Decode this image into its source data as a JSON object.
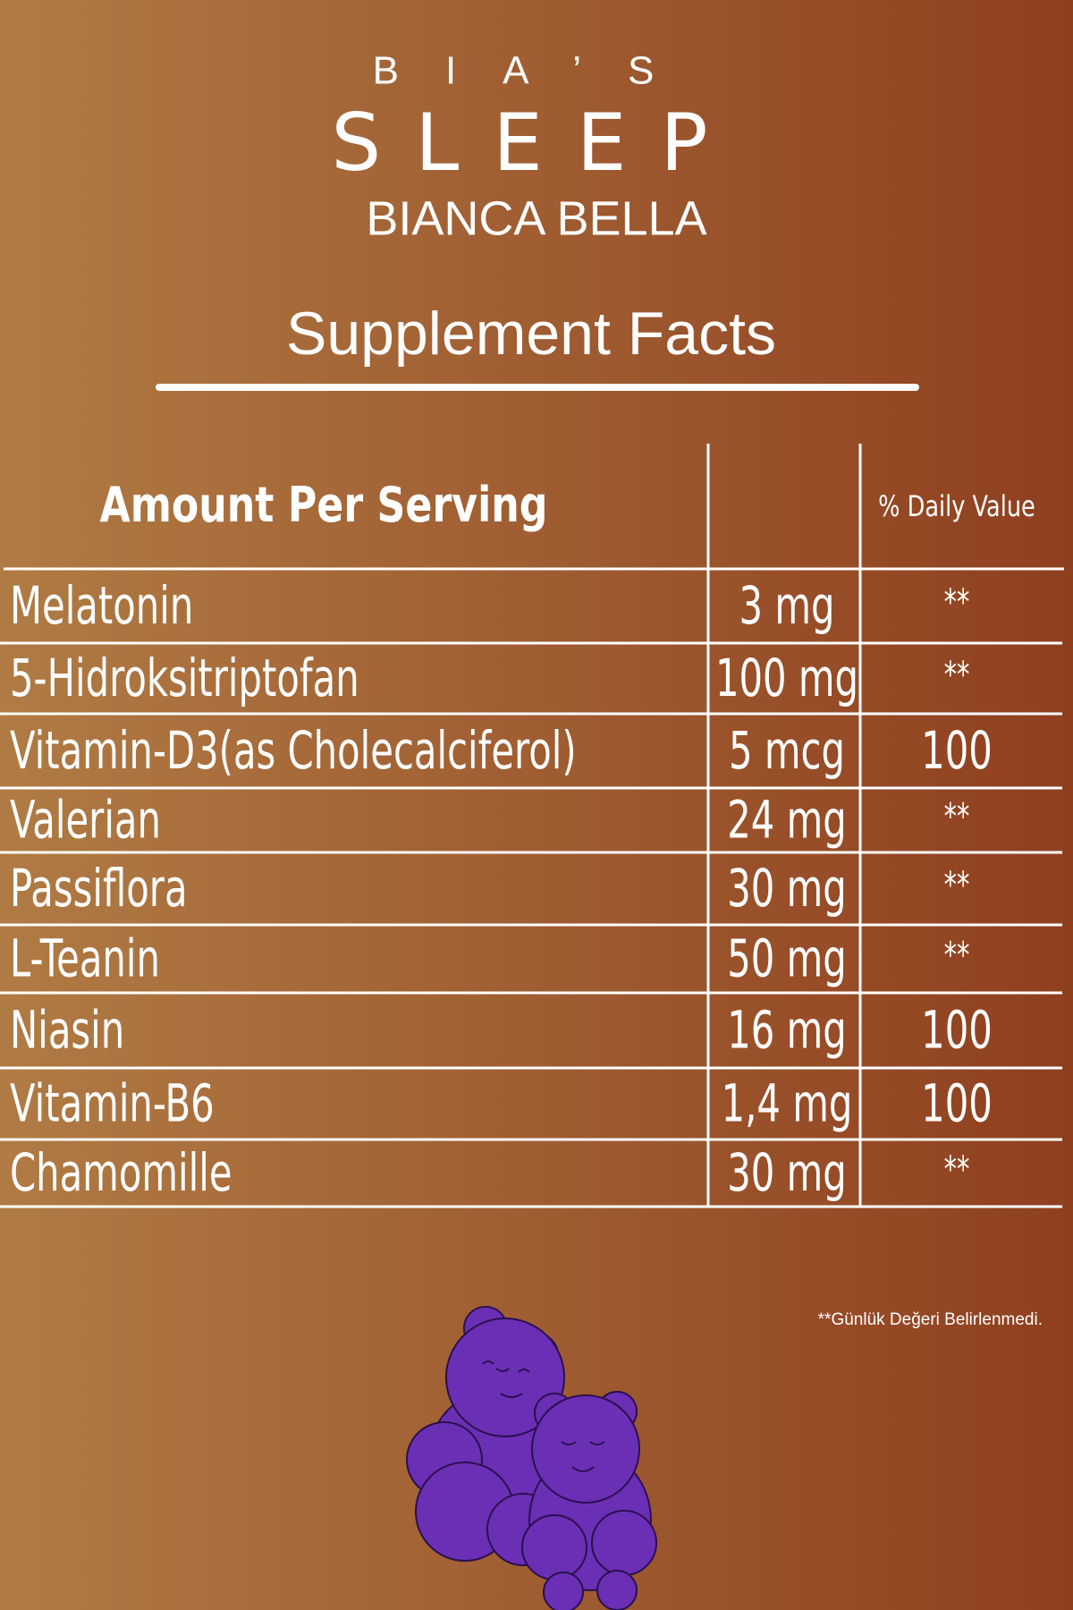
{
  "header": {
    "brand": "BIA’S",
    "product": "SLEEP",
    "company": "BIANCA BELLA"
  },
  "title": "Supplement Facts",
  "table": {
    "columns": [
      "Amount Per Serving",
      "% Daily Value"
    ],
    "rows": [
      [
        "Melatonin",
        "3 mg",
        "**"
      ],
      [
        "5-Hidroksitriptofan",
        "100 mg",
        "**"
      ],
      [
        "Vitamin-D3(as Cholecalciferol)",
        "5 mcg",
        "100"
      ],
      [
        "Valerian",
        "24 mg",
        "**"
      ],
      [
        "Passiflora",
        "30 mg",
        "**"
      ],
      [
        "L-Teanin",
        "50 mg",
        "**"
      ],
      [
        "Niasin",
        "16 mg",
        "100"
      ],
      [
        "Vitamin-B6",
        "1,4 mg",
        "100"
      ],
      [
        "Chamomille",
        "30 mg",
        "**"
      ]
    ]
  },
  "footnote": "**Günlük Değeri Belirlenmedi."
}
